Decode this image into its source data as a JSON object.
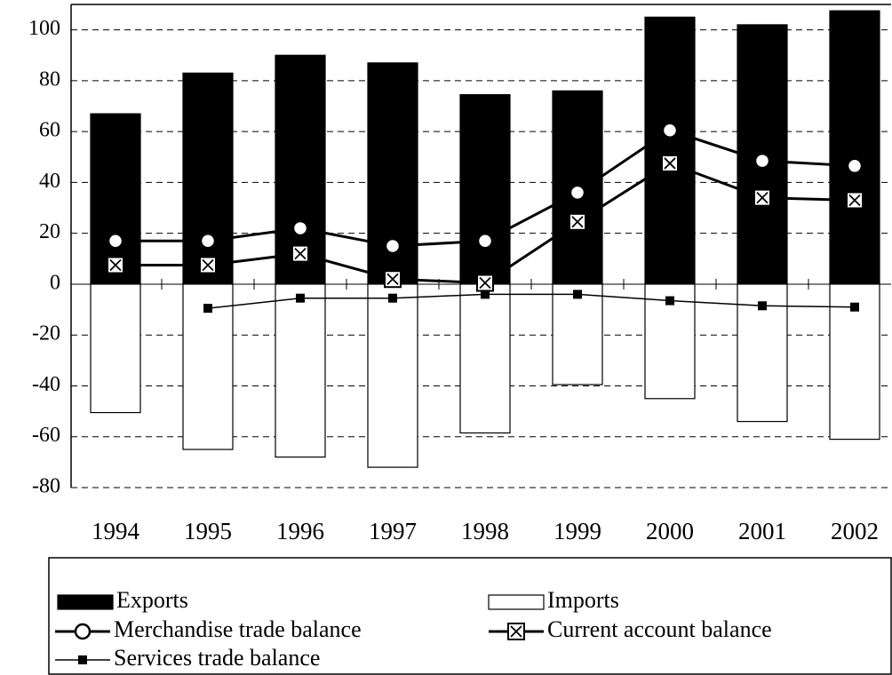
{
  "chart_data": {
    "type": "bar",
    "categories": [
      "1994",
      "1995",
      "1996",
      "1997",
      "1998",
      "1999",
      "2000",
      "2001",
      "2002"
    ],
    "series": [
      {
        "name": "Exports",
        "type": "bar",
        "color": "#000000",
        "values": [
          67,
          83,
          90,
          87,
          74.5,
          76,
          105,
          102,
          107.5
        ]
      },
      {
        "name": "Imports",
        "type": "bar",
        "color": "#ffffff",
        "values": [
          -50.5,
          -65,
          -68,
          -72,
          -58.5,
          -39.5,
          -45,
          -54,
          -61
        ]
      },
      {
        "name": "Merchandise trade balance",
        "type": "line",
        "marker": "circle",
        "color": "#000000",
        "values": [
          17,
          17,
          22,
          15,
          17,
          36,
          60.5,
          48.5,
          46.5
        ]
      },
      {
        "name": "Current account balance",
        "type": "line",
        "marker": "x-box",
        "color": "#000000",
        "values": [
          7.5,
          7.5,
          12,
          2,
          0.5,
          24.5,
          47.5,
          34,
          33
        ]
      },
      {
        "name": "Services trade balance",
        "type": "line",
        "marker": "square",
        "color": "#000000",
        "values": [
          null,
          -9.5,
          -5.5,
          -5.5,
          -4,
          -4,
          -6.5,
          -8.5,
          -9
        ]
      }
    ],
    "ylim": [
      -80,
      110
    ],
    "yticks": [
      -80,
      -60,
      -40,
      -20,
      0,
      20,
      40,
      60,
      80,
      100
    ],
    "grid": true
  }
}
